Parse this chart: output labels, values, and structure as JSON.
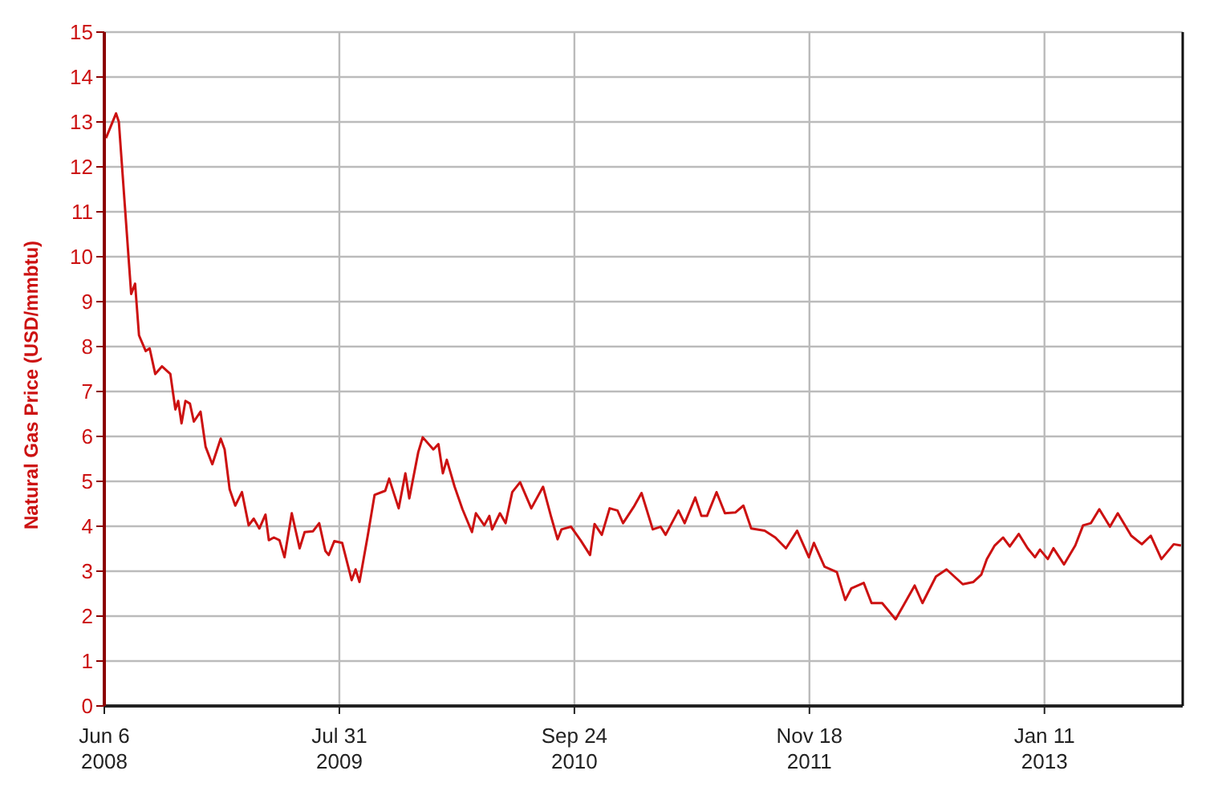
{
  "chart_data": {
    "type": "line",
    "ylabel": "Natural Gas Price (USD/mmbtu)",
    "x": [
      "2008-06-09",
      "2008-06-27",
      "2008-07-02",
      "2008-07-24",
      "2008-07-31",
      "2008-08-07",
      "2008-08-19",
      "2008-08-26",
      "2008-09-05",
      "2008-09-17",
      "2008-10-02",
      "2008-10-11",
      "2008-10-16",
      "2008-10-22",
      "2008-10-29",
      "2008-11-06",
      "2008-11-13",
      "2008-11-25",
      "2008-12-04",
      "2008-12-16",
      "2008-12-31",
      "2009-01-07",
      "2009-01-16",
      "2009-01-26",
      "2009-02-07",
      "2009-02-19",
      "2009-02-28",
      "2009-03-10",
      "2009-03-21",
      "2009-03-27",
      "2009-04-05",
      "2009-04-15",
      "2009-04-24",
      "2009-05-07",
      "2009-05-21",
      "2009-05-30",
      "2009-06-14",
      "2009-06-25",
      "2009-07-06",
      "2009-07-12",
      "2009-07-22",
      "2009-08-05",
      "2009-08-22",
      "2009-08-29",
      "2009-09-05",
      "2009-09-20",
      "2009-10-02",
      "2009-10-21",
      "2009-10-28",
      "2009-11-14",
      "2009-11-26",
      "2009-12-03",
      "2009-12-19",
      "2009-12-27",
      "2010-01-15",
      "2010-01-24",
      "2010-02-01",
      "2010-02-08",
      "2010-02-22",
      "2010-03-08",
      "2010-03-25",
      "2010-04-01",
      "2010-04-16",
      "2010-04-25",
      "2010-04-30",
      "2010-05-14",
      "2010-05-24",
      "2010-06-05",
      "2010-06-19",
      "2010-07-09",
      "2010-07-30",
      "2010-08-13",
      "2010-08-25",
      "2010-09-01",
      "2010-09-18",
      "2010-10-05",
      "2010-10-22",
      "2010-10-30",
      "2010-11-12",
      "2010-11-26",
      "2010-12-10",
      "2010-12-20",
      "2011-01-08",
      "2011-01-22",
      "2011-02-11",
      "2011-02-25",
      "2011-03-06",
      "2011-03-29",
      "2011-04-09",
      "2011-04-28",
      "2011-05-09",
      "2011-05-19",
      "2011-06-05",
      "2011-06-20",
      "2011-07-09",
      "2011-07-23",
      "2011-08-06",
      "2011-08-30",
      "2011-09-18",
      "2011-10-07",
      "2011-10-27",
      "2011-11-17",
      "2011-11-26",
      "2011-12-15",
      "2012-01-06",
      "2012-01-21",
      "2012-02-01",
      "2012-02-23",
      "2012-03-08",
      "2012-03-27",
      "2012-04-20",
      "2012-05-05",
      "2012-05-24",
      "2012-06-07",
      "2012-07-01",
      "2012-07-20",
      "2012-08-18",
      "2012-09-06",
      "2012-09-20",
      "2012-09-30",
      "2012-10-14",
      "2012-10-29",
      "2012-11-10",
      "2012-11-26",
      "2012-12-12",
      "2012-12-25",
      "2013-01-03",
      "2013-01-17",
      "2013-01-27",
      "2013-02-15",
      "2013-03-07",
      "2013-03-21",
      "2013-04-04",
      "2013-04-19",
      "2013-05-08",
      "2013-05-22",
      "2013-06-15",
      "2013-07-04",
      "2013-07-20",
      "2013-08-08",
      "2013-08-30",
      "2013-09-12"
    ],
    "series": [
      {
        "color": "#cc1111",
        "values": [
          12.64,
          13.19,
          13.0,
          9.17,
          9.4,
          8.25,
          7.9,
          7.96,
          7.39,
          7.56,
          7.39,
          6.6,
          6.79,
          6.29,
          6.79,
          6.73,
          6.33,
          6.55,
          5.77,
          5.38,
          5.95,
          5.71,
          4.82,
          4.46,
          4.76,
          4.02,
          4.17,
          3.95,
          4.26,
          3.69,
          3.75,
          3.69,
          3.31,
          4.29,
          3.51,
          3.87,
          3.89,
          4.07,
          3.45,
          3.36,
          3.67,
          3.63,
          2.8,
          3.04,
          2.76,
          3.81,
          4.7,
          4.79,
          5.06,
          4.4,
          5.18,
          4.62,
          5.65,
          5.98,
          5.71,
          5.83,
          5.18,
          5.48,
          4.88,
          4.38,
          3.87,
          4.29,
          4.02,
          4.23,
          3.93,
          4.29,
          4.07,
          4.76,
          4.98,
          4.4,
          4.88,
          4.23,
          3.71,
          3.93,
          3.99,
          3.69,
          3.36,
          4.05,
          3.81,
          4.4,
          4.35,
          4.07,
          4.43,
          4.74,
          3.93,
          3.99,
          3.81,
          4.35,
          4.07,
          4.64,
          4.23,
          4.23,
          4.76,
          4.29,
          4.31,
          4.46,
          3.95,
          3.9,
          3.75,
          3.51,
          3.9,
          3.31,
          3.63,
          3.1,
          2.98,
          2.36,
          2.62,
          2.74,
          2.29,
          2.29,
          1.93,
          2.26,
          2.68,
          2.29,
          2.88,
          3.04,
          2.71,
          2.76,
          2.92,
          3.27,
          3.57,
          3.75,
          3.55,
          3.83,
          3.51,
          3.31,
          3.48,
          3.27,
          3.51,
          3.15,
          3.57,
          4.02,
          4.07,
          4.38,
          3.99,
          4.29,
          3.79,
          3.6,
          3.79,
          3.27,
          3.6,
          3.57
        ]
      }
    ],
    "xlim": [
      "2008-06-06",
      "2013-09-15"
    ],
    "xticks": [
      {
        "value": "2008-06-06",
        "label": "Jun 6\n2008"
      },
      {
        "value": "2009-07-31",
        "label": "Jul 31\n2009"
      },
      {
        "value": "2010-09-24",
        "label": "Sep 24\n2010"
      },
      {
        "value": "2011-11-18",
        "label": "Nov 18\n2011"
      },
      {
        "value": "2013-01-11",
        "label": "Jan 11\n2013"
      }
    ],
    "ylim": [
      0,
      15
    ],
    "yticks": [
      0,
      1,
      2,
      3,
      4,
      5,
      6,
      7,
      8,
      9,
      10,
      11,
      12,
      13,
      14,
      15
    ],
    "grid": true,
    "marker": "none",
    "line_style": "solid",
    "legend": false
  }
}
